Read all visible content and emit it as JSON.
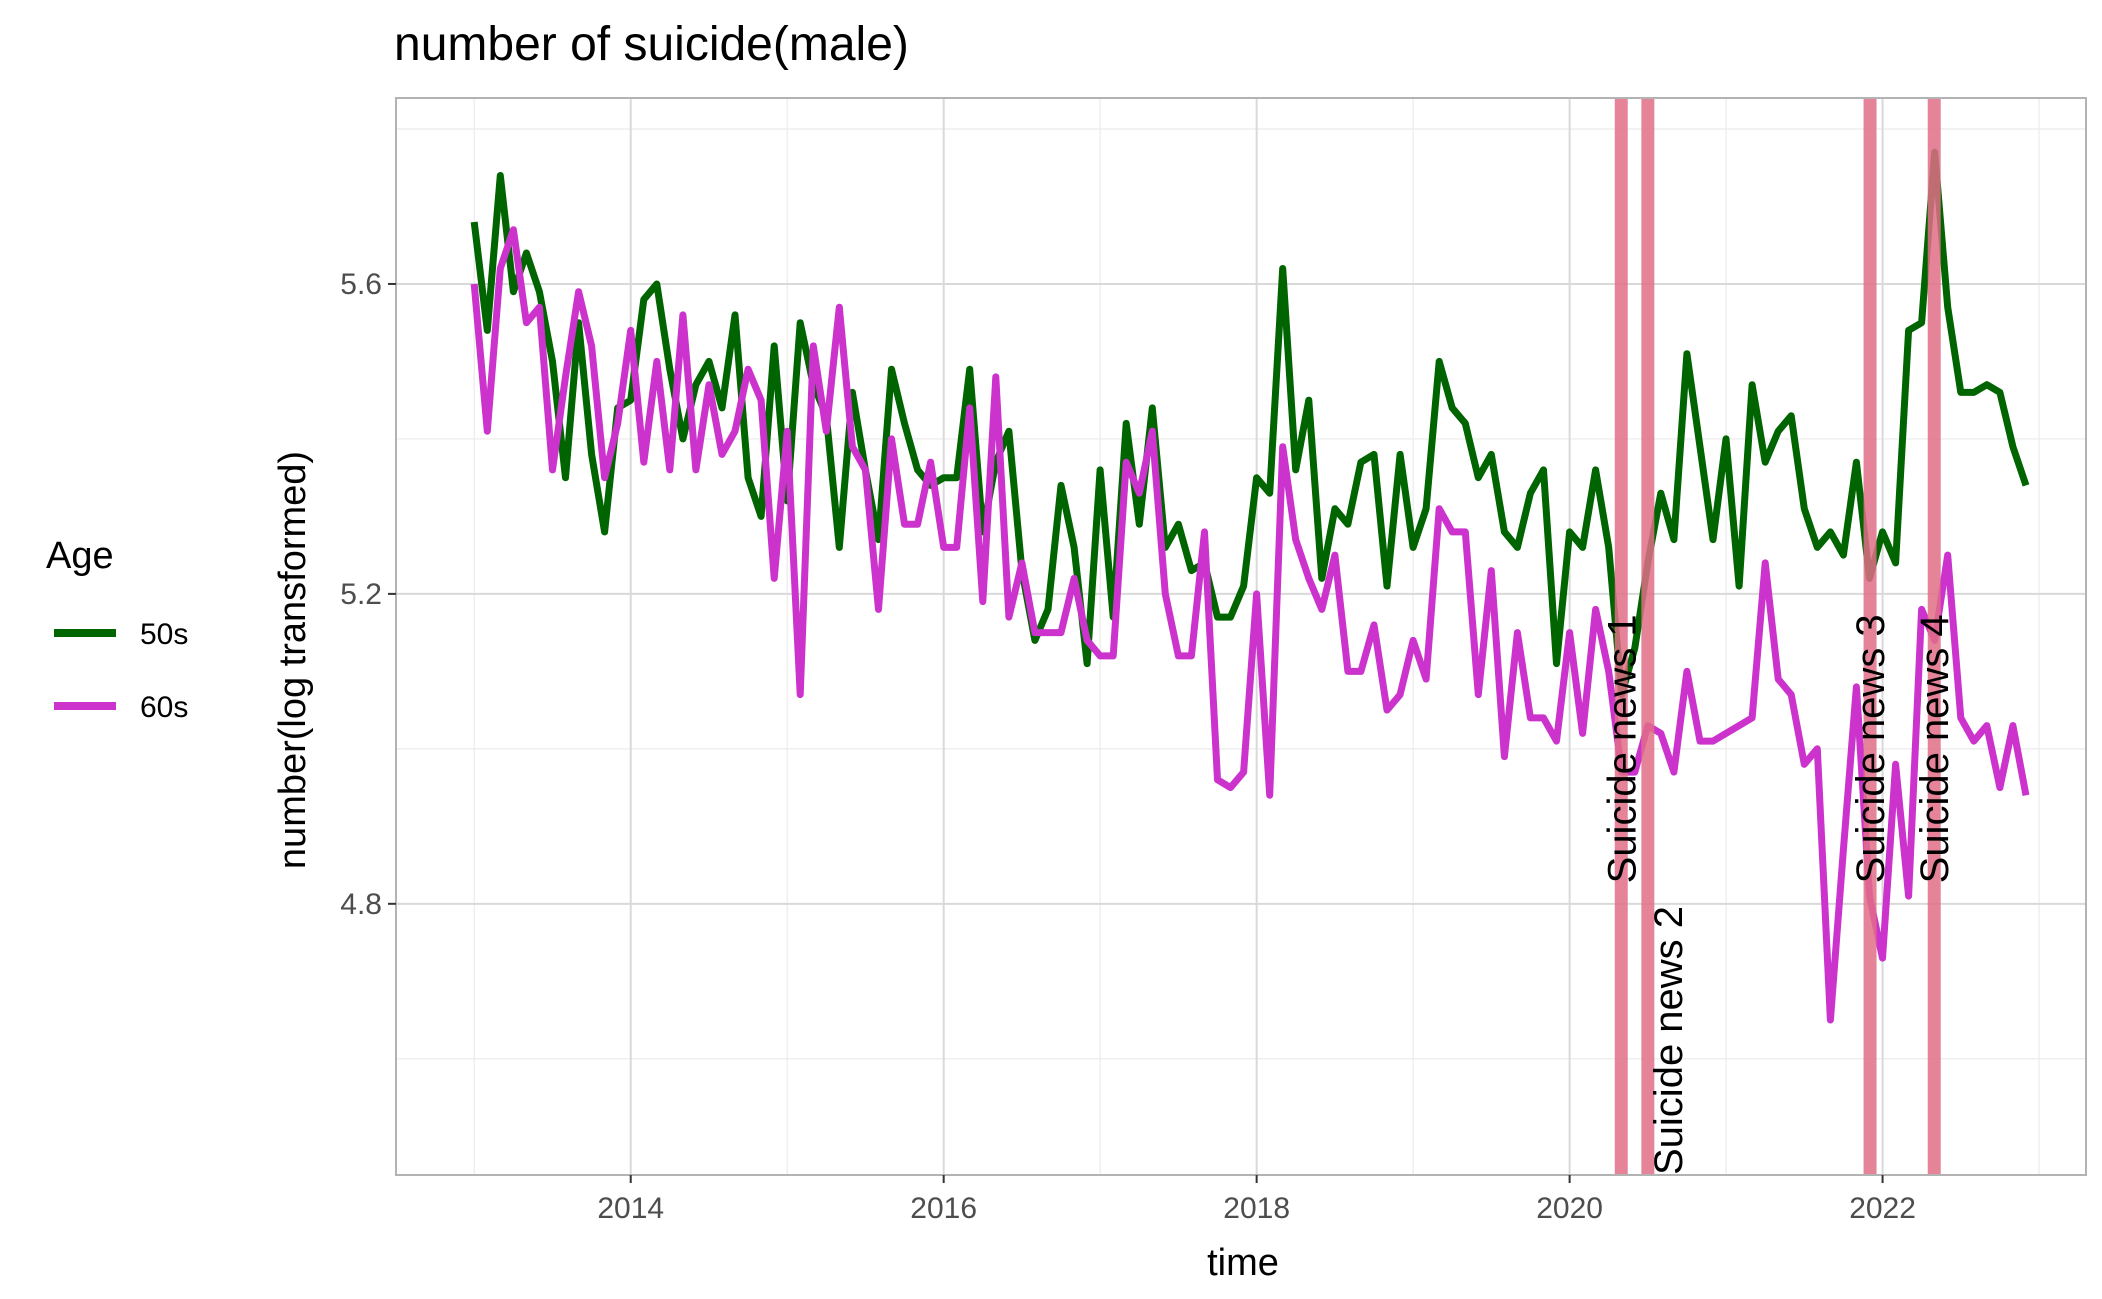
{
  "chart_data": {
    "type": "line",
    "title": "number of suicide(male)",
    "xlabel": "time",
    "ylabel": "number(log transformed)",
    "xlim": [
      2012.5,
      2023.3
    ],
    "ylim": [
      4.45,
      5.84
    ],
    "x_ticks": [
      2014,
      2016,
      2018,
      2020,
      2022
    ],
    "x_tick_labels": [
      "2014",
      "2016",
      "2018",
      "2020",
      "2022"
    ],
    "y_ticks": [
      4.8,
      5.2,
      5.6
    ],
    "y_tick_labels": [
      "4.8",
      "5.2",
      "5.6"
    ],
    "grid": true,
    "legend": {
      "title": "Age",
      "position": "left"
    },
    "x_start": 2013.0,
    "x_step": 0.08333,
    "series": [
      {
        "name": "50s",
        "color": "#006400",
        "values": [
          5.68,
          5.54,
          5.74,
          5.59,
          5.64,
          5.59,
          5.5,
          5.35,
          5.55,
          5.38,
          5.28,
          5.44,
          5.45,
          5.58,
          5.6,
          5.49,
          5.4,
          5.47,
          5.5,
          5.44,
          5.56,
          5.35,
          5.3,
          5.52,
          5.32,
          5.55,
          5.47,
          5.43,
          5.26,
          5.46,
          5.36,
          5.27,
          5.49,
          5.42,
          5.36,
          5.34,
          5.35,
          5.35,
          5.49,
          5.28,
          5.37,
          5.41,
          5.23,
          5.14,
          5.18,
          5.34,
          5.26,
          5.11,
          5.36,
          5.17,
          5.42,
          5.29,
          5.44,
          5.26,
          5.29,
          5.23,
          5.24,
          5.17,
          5.17,
          5.21,
          5.35,
          5.33,
          5.62,
          5.36,
          5.45,
          5.22,
          5.31,
          5.29,
          5.37,
          5.38,
          5.21,
          5.38,
          5.26,
          5.31,
          5.5,
          5.44,
          5.42,
          5.35,
          5.38,
          5.28,
          5.26,
          5.33,
          5.36,
          5.11,
          5.28,
          5.26,
          5.36,
          5.26,
          5.07,
          5.13,
          5.24,
          5.33,
          5.27,
          5.51,
          5.39,
          5.27,
          5.4,
          5.21,
          5.47,
          5.37,
          5.41,
          5.43,
          5.31,
          5.26,
          5.28,
          5.25,
          5.37,
          5.22,
          5.28,
          5.24,
          5.54,
          5.55,
          5.77,
          5.57,
          5.46,
          5.46,
          5.47,
          5.46,
          5.39,
          5.34
        ]
      },
      {
        "name": "60s",
        "color": "#cc33cc",
        "values": [
          5.6,
          5.41,
          5.62,
          5.67,
          5.55,
          5.57,
          5.36,
          5.48,
          5.59,
          5.52,
          5.35,
          5.42,
          5.54,
          5.37,
          5.5,
          5.36,
          5.56,
          5.36,
          5.47,
          5.38,
          5.41,
          5.49,
          5.45,
          5.22,
          5.41,
          5.07,
          5.52,
          5.41,
          5.57,
          5.39,
          5.36,
          5.18,
          5.4,
          5.29,
          5.29,
          5.37,
          5.26,
          5.26,
          5.44,
          5.19,
          5.48,
          5.17,
          5.24,
          5.15,
          5.15,
          5.15,
          5.22,
          5.14,
          5.12,
          5.12,
          5.37,
          5.33,
          5.41,
          5.2,
          5.12,
          5.12,
          5.28,
          4.96,
          4.95,
          4.97,
          5.2,
          4.94,
          5.39,
          5.27,
          5.22,
          5.18,
          5.25,
          5.1,
          5.1,
          5.16,
          5.05,
          5.07,
          5.14,
          5.09,
          5.31,
          5.28,
          5.28,
          5.07,
          5.23,
          4.99,
          5.15,
          5.04,
          5.04,
          5.01,
          5.15,
          5.02,
          5.18,
          5.1,
          4.97,
          4.97,
          5.03,
          5.02,
          4.97,
          5.1,
          5.01,
          5.01,
          5.02,
          5.03,
          5.04,
          5.24,
          5.09,
          5.07,
          4.98,
          5.0,
          4.65,
          4.87,
          5.08,
          4.81,
          4.73,
          4.98,
          4.81,
          5.18,
          5.14,
          5.25,
          5.04,
          5.01,
          5.03,
          4.95,
          5.03,
          4.94
        ]
      }
    ],
    "annotations": [
      {
        "label": "Suicide news 1",
        "x": 2020.33,
        "label_anchor": "middle"
      },
      {
        "label": "Suicide news 2",
        "x": 2020.5,
        "label_anchor": "bottom"
      },
      {
        "label": "Suicide news 3",
        "x": 2021.92,
        "label_anchor": "middle"
      },
      {
        "label": "Suicide news 4",
        "x": 2022.33,
        "label_anchor": "middle"
      }
    ],
    "annotation_color": "#e06f87"
  }
}
